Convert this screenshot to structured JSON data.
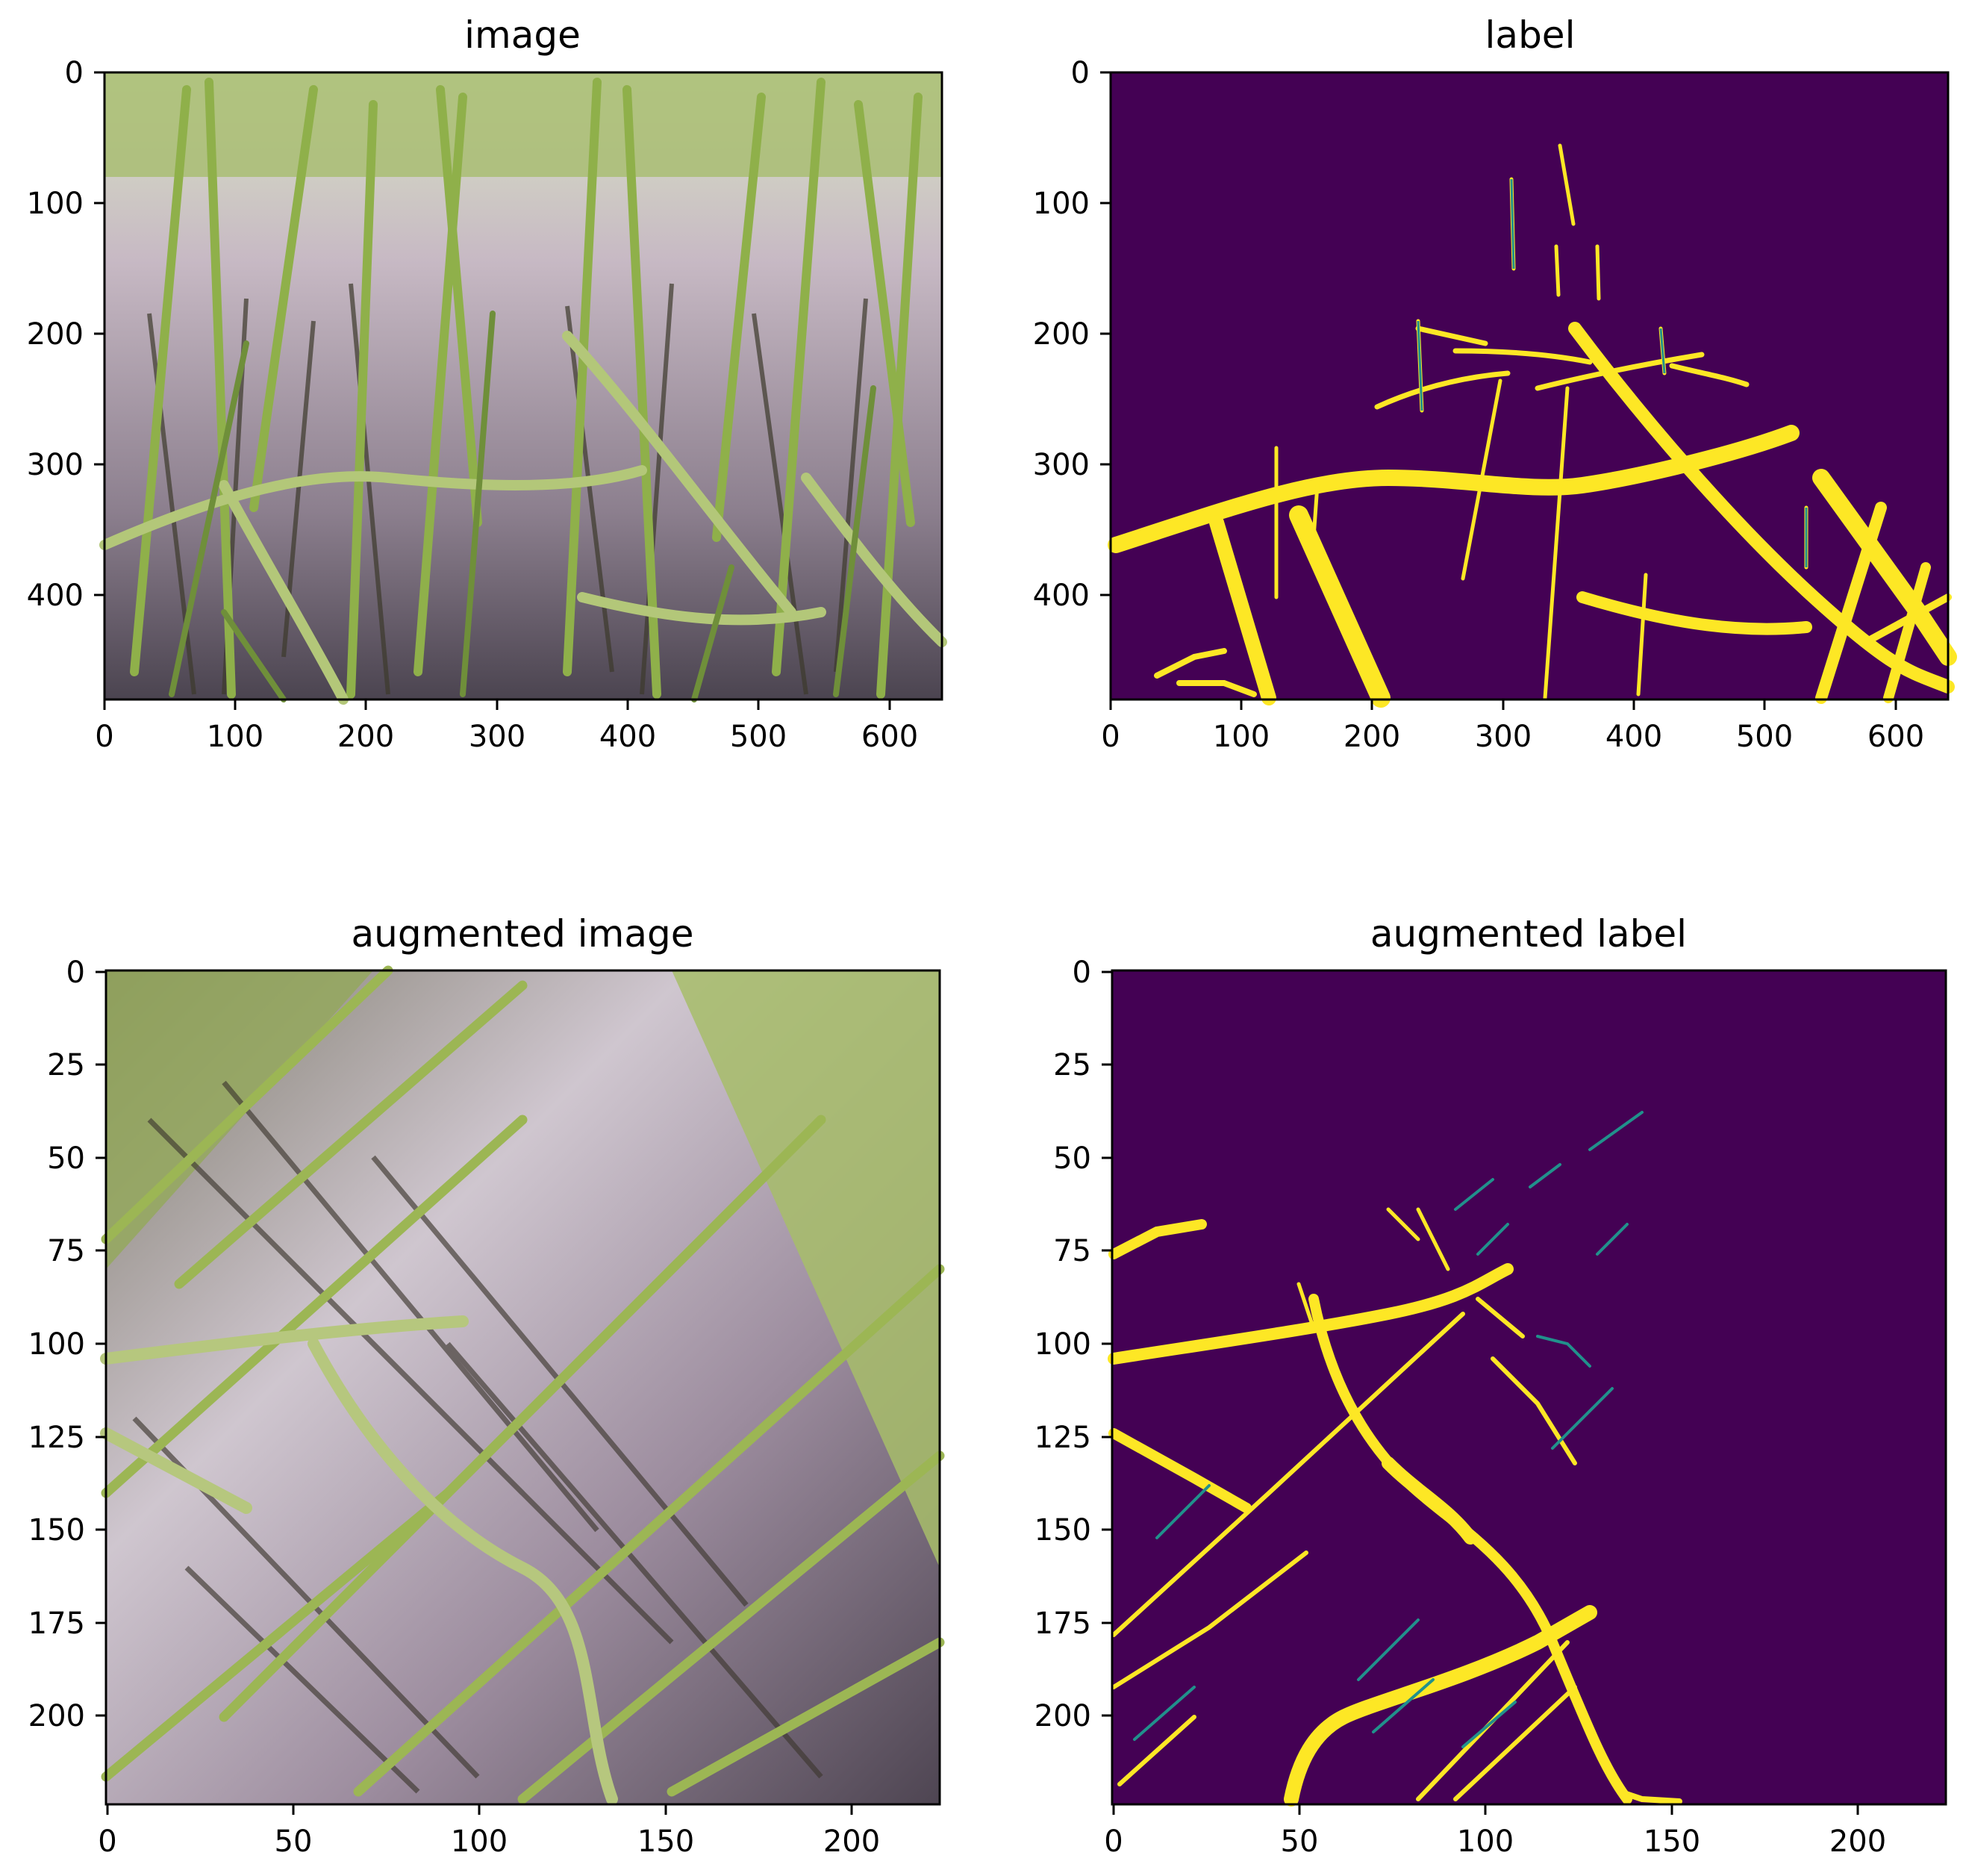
{
  "figure": {
    "panels": [
      {
        "id": "image",
        "title": "image",
        "kind": "photo",
        "xticks": [
          "0",
          "100",
          "200",
          "300",
          "400",
          "500",
          "600"
        ],
        "yticks": [
          "0",
          "100",
          "200",
          "300",
          "400"
        ],
        "xlim": [
          0,
          640
        ],
        "ylim": [
          480,
          0
        ]
      },
      {
        "id": "label",
        "title": "label",
        "kind": "mask",
        "xticks": [
          "0",
          "100",
          "200",
          "300",
          "400",
          "500",
          "600"
        ],
        "yticks": [
          "0",
          "100",
          "200",
          "300",
          "400"
        ],
        "xlim": [
          0,
          640
        ],
        "ylim": [
          480,
          0
        ]
      },
      {
        "id": "aug_image",
        "title": "augmented image",
        "kind": "photo",
        "xticks": [
          "0",
          "50",
          "100",
          "150",
          "200"
        ],
        "yticks": [
          "0",
          "25",
          "50",
          "75",
          "100",
          "125",
          "150",
          "175",
          "200"
        ],
        "xlim": [
          0,
          224
        ],
        "ylim": [
          224,
          0
        ]
      },
      {
        "id": "aug_label",
        "title": "augmented label",
        "kind": "mask",
        "xticks": [
          "0",
          "50",
          "100",
          "150",
          "200"
        ],
        "yticks": [
          "0",
          "25",
          "50",
          "75",
          "100",
          "125",
          "150",
          "175",
          "200"
        ],
        "xlim": [
          0,
          224
        ],
        "ylim": [
          224,
          0
        ]
      }
    ],
    "colors": {
      "mask_background": "#440154",
      "mask_foreground": "#fde725",
      "mask_edge": "#21918c",
      "photo_green": "#9bb25a",
      "photo_water": "#a89aa8"
    }
  }
}
